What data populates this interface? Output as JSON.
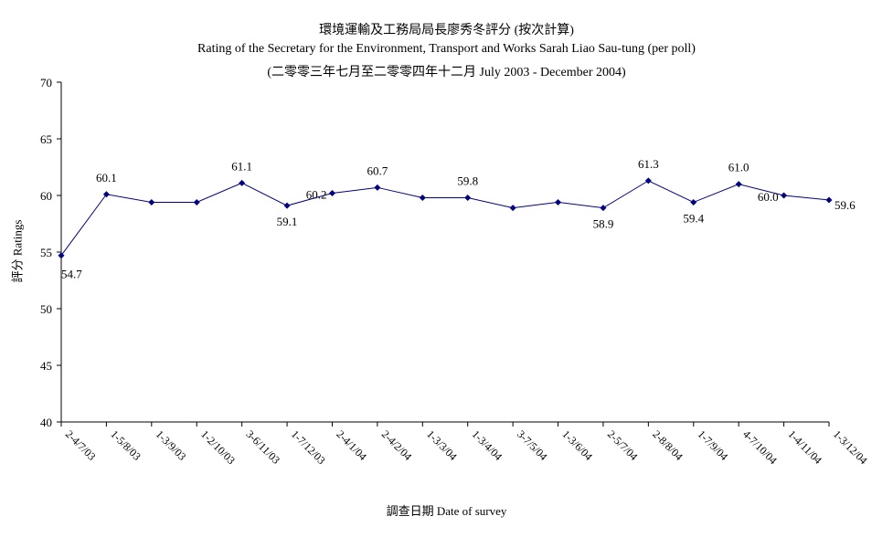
{
  "chart_data": {
    "type": "line",
    "title": "環境運輸及工務局局長廖秀冬評分 (按次計算)",
    "subtitle": "Rating of the Secretary for the Environment, Transport and Works Sarah Liao Sau-tung  (per poll)",
    "subtitle2": "(二零零三年七月至二零零四年十二月 July 2003 - December 2004)",
    "ylabel": "評分 Ratings",
    "xlabel": "調查日期 Date of survey",
    "ylim": [
      40,
      70
    ],
    "yticks": [
      40,
      45,
      50,
      55,
      60,
      65,
      70
    ],
    "grid": false,
    "categories": [
      "2-4/7/03",
      "1-5/8/03",
      "1-3/9/03",
      "1-2/10/03",
      "3-6/11/03",
      "1-7/12/03",
      "2-4/1/04",
      "2-4/2/04",
      "1-3/3/04",
      "1-3/4/04",
      "3-7/5/04",
      "1-3/6/04",
      "2-5/7/04",
      "2-8/8/04",
      "1-7/9/04",
      "4-7/10/04",
      "1-4/11/04",
      "1-3/12/04"
    ],
    "values": [
      54.7,
      60.1,
      59.4,
      59.4,
      61.1,
      59.1,
      60.2,
      60.7,
      59.8,
      59.8,
      58.9,
      59.4,
      58.9,
      61.3,
      59.4,
      61.0,
      60.0,
      59.6
    ],
    "data_labels": [
      "54.7",
      "60.1",
      "",
      "",
      "61.1",
      "59.1",
      "60.2",
      "60.7",
      "",
      "59.8",
      "",
      "",
      "58.9",
      "61.3",
      "59.4",
      "61.0",
      "60.0",
      "59.6"
    ],
    "series_color": "#000080"
  }
}
